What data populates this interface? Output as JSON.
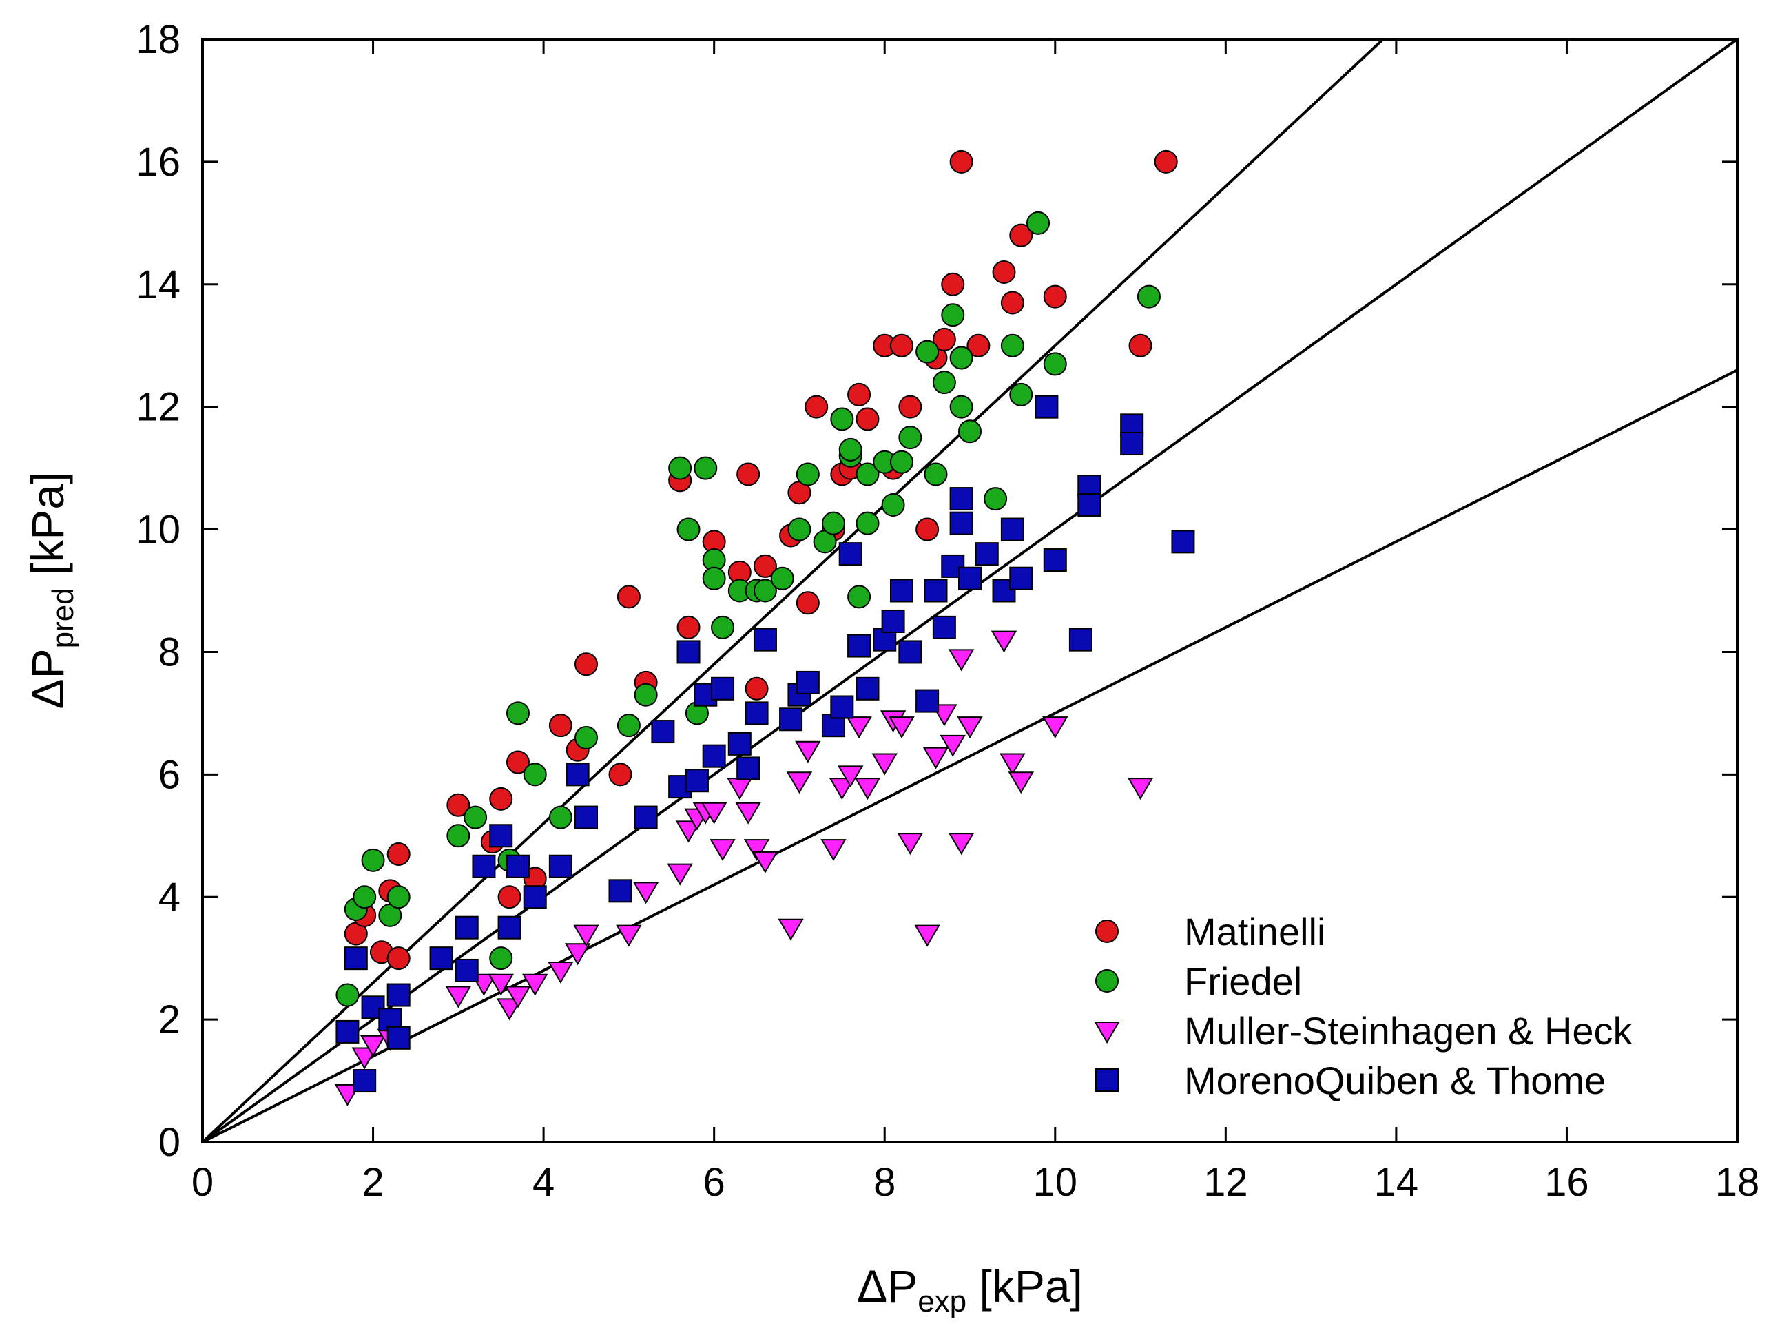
{
  "chart_data": {
    "type": "scatter",
    "title": "",
    "xlabel": {
      "main": "ΔP",
      "sub": "exp",
      "unit": " [kPa]"
    },
    "ylabel": {
      "main": "ΔP",
      "sub": "pred",
      "unit": " [kPa]"
    },
    "xlim": [
      0,
      18
    ],
    "ylim": [
      0,
      18
    ],
    "xticks": [
      "0",
      "2",
      "4",
      "6",
      "8",
      "10",
      "12",
      "14",
      "16",
      "18"
    ],
    "yticks": [
      "0",
      "2",
      "4",
      "6",
      "8",
      "10",
      "12",
      "14",
      "16",
      "18"
    ],
    "grid": false,
    "legend_position": "bottom-right",
    "reference_lines": [
      {
        "name": "+30% line",
        "slope": 1.3
      },
      {
        "name": "parity line",
        "slope": 1.0
      },
      {
        "name": "-30% line",
        "slope": 0.7
      }
    ],
    "series": [
      {
        "name": "Matinelli",
        "marker": "circle",
        "color": "#e0181d",
        "points": [
          [
            1.8,
            3.4
          ],
          [
            1.9,
            3.7
          ],
          [
            2.1,
            3.1
          ],
          [
            2.2,
            4.1
          ],
          [
            2.3,
            3.0
          ],
          [
            2.3,
            4.7
          ],
          [
            3.0,
            5.5
          ],
          [
            3.4,
            4.9
          ],
          [
            3.5,
            5.6
          ],
          [
            3.6,
            4.0
          ],
          [
            3.7,
            6.2
          ],
          [
            3.9,
            4.3
          ],
          [
            4.2,
            6.8
          ],
          [
            4.4,
            6.4
          ],
          [
            4.5,
            7.8
          ],
          [
            4.9,
            6.0
          ],
          [
            5.0,
            8.9
          ],
          [
            5.2,
            7.5
          ],
          [
            5.6,
            10.8
          ],
          [
            5.7,
            8.4
          ],
          [
            6.0,
            9.8
          ],
          [
            6.3,
            9.3
          ],
          [
            6.4,
            10.9
          ],
          [
            6.5,
            7.4
          ],
          [
            6.6,
            9.4
          ],
          [
            6.9,
            9.9
          ],
          [
            7.0,
            10.6
          ],
          [
            7.1,
            8.8
          ],
          [
            7.2,
            12.0
          ],
          [
            7.4,
            10.0
          ],
          [
            7.5,
            10.9
          ],
          [
            7.6,
            11.0
          ],
          [
            7.7,
            12.2
          ],
          [
            7.8,
            11.8
          ],
          [
            8.0,
            13.0
          ],
          [
            8.1,
            11.0
          ],
          [
            8.2,
            13.0
          ],
          [
            8.3,
            12.0
          ],
          [
            8.5,
            10.0
          ],
          [
            8.6,
            12.8
          ],
          [
            8.7,
            13.1
          ],
          [
            8.8,
            14.0
          ],
          [
            8.9,
            16.0
          ],
          [
            9.1,
            13.0
          ],
          [
            9.4,
            14.2
          ],
          [
            9.5,
            13.7
          ],
          [
            9.6,
            14.8
          ],
          [
            10.0,
            13.8
          ],
          [
            11.0,
            13.0
          ],
          [
            11.3,
            16.0
          ]
        ]
      },
      {
        "name": "Friedel",
        "marker": "circle",
        "color": "#1aa91a",
        "points": [
          [
            1.7,
            2.4
          ],
          [
            1.8,
            3.8
          ],
          [
            1.9,
            4.0
          ],
          [
            2.0,
            4.6
          ],
          [
            2.2,
            3.7
          ],
          [
            2.3,
            4.0
          ],
          [
            3.0,
            5.0
          ],
          [
            3.2,
            5.3
          ],
          [
            3.5,
            3.0
          ],
          [
            3.6,
            4.6
          ],
          [
            3.7,
            7.0
          ],
          [
            3.9,
            6.0
          ],
          [
            4.2,
            5.3
          ],
          [
            4.5,
            6.6
          ],
          [
            5.0,
            6.8
          ],
          [
            5.2,
            7.3
          ],
          [
            5.6,
            11.0
          ],
          [
            5.7,
            10.0
          ],
          [
            5.8,
            7.0
          ],
          [
            5.9,
            11.0
          ],
          [
            6.0,
            9.5
          ],
          [
            6.0,
            9.2
          ],
          [
            6.1,
            8.4
          ],
          [
            6.3,
            9.0
          ],
          [
            6.5,
            9.0
          ],
          [
            6.6,
            9.0
          ],
          [
            6.8,
            9.2
          ],
          [
            7.0,
            10.0
          ],
          [
            7.1,
            10.9
          ],
          [
            7.3,
            9.8
          ],
          [
            7.4,
            10.1
          ],
          [
            7.5,
            11.8
          ],
          [
            7.6,
            11.2
          ],
          [
            7.6,
            11.3
          ],
          [
            7.7,
            8.9
          ],
          [
            7.8,
            10.1
          ],
          [
            7.8,
            10.9
          ],
          [
            8.0,
            11.1
          ],
          [
            8.1,
            10.4
          ],
          [
            8.2,
            11.1
          ],
          [
            8.3,
            11.5
          ],
          [
            8.5,
            12.9
          ],
          [
            8.6,
            10.9
          ],
          [
            8.7,
            12.4
          ],
          [
            8.8,
            13.5
          ],
          [
            8.9,
            12.0
          ],
          [
            8.9,
            12.8
          ],
          [
            9.0,
            11.6
          ],
          [
            9.3,
            10.5
          ],
          [
            9.5,
            13.0
          ],
          [
            9.6,
            12.2
          ],
          [
            9.8,
            15.0
          ],
          [
            10.0,
            12.7
          ],
          [
            11.1,
            13.8
          ]
        ]
      },
      {
        "name": "Muller-Steinhagen & Heck",
        "marker": "triangle-down",
        "color": "#ff22ff",
        "points": [
          [
            1.7,
            0.8
          ],
          [
            1.9,
            1.4
          ],
          [
            2.0,
            1.6
          ],
          [
            2.2,
            1.7
          ],
          [
            3.0,
            2.4
          ],
          [
            3.3,
            2.6
          ],
          [
            3.5,
            2.6
          ],
          [
            3.6,
            2.2
          ],
          [
            3.7,
            2.4
          ],
          [
            3.9,
            2.6
          ],
          [
            4.2,
            2.8
          ],
          [
            4.4,
            3.1
          ],
          [
            4.5,
            3.4
          ],
          [
            5.0,
            3.4
          ],
          [
            5.2,
            4.1
          ],
          [
            5.6,
            4.4
          ],
          [
            5.7,
            5.1
          ],
          [
            5.8,
            5.3
          ],
          [
            5.9,
            5.4
          ],
          [
            6.0,
            5.4
          ],
          [
            6.1,
            4.8
          ],
          [
            6.3,
            5.8
          ],
          [
            6.4,
            5.4
          ],
          [
            6.5,
            4.8
          ],
          [
            6.6,
            4.6
          ],
          [
            6.9,
            3.5
          ],
          [
            7.0,
            5.9
          ],
          [
            7.1,
            6.4
          ],
          [
            7.4,
            4.8
          ],
          [
            7.5,
            5.8
          ],
          [
            7.6,
            6.0
          ],
          [
            7.7,
            6.8
          ],
          [
            7.8,
            5.8
          ],
          [
            8.0,
            6.2
          ],
          [
            8.1,
            6.9
          ],
          [
            8.2,
            6.8
          ],
          [
            8.3,
            4.9
          ],
          [
            8.5,
            3.4
          ],
          [
            8.6,
            6.3
          ],
          [
            8.7,
            7.0
          ],
          [
            8.8,
            6.5
          ],
          [
            8.9,
            7.9
          ],
          [
            8.9,
            4.9
          ],
          [
            9.0,
            6.8
          ],
          [
            9.4,
            8.2
          ],
          [
            9.5,
            6.2
          ],
          [
            9.6,
            5.9
          ],
          [
            10.0,
            6.8
          ],
          [
            11.0,
            5.8
          ]
        ]
      },
      {
        "name": "MorenoQuiben & Thome",
        "marker": "square",
        "color": "#0a0ab4",
        "points": [
          [
            1.7,
            1.8
          ],
          [
            1.8,
            3.0
          ],
          [
            1.9,
            1.0
          ],
          [
            2.0,
            2.2
          ],
          [
            2.2,
            2.0
          ],
          [
            2.3,
            2.4
          ],
          [
            2.3,
            1.7
          ],
          [
            2.8,
            3.0
          ],
          [
            3.1,
            3.5
          ],
          [
            3.1,
            2.8
          ],
          [
            3.3,
            4.5
          ],
          [
            3.5,
            5.0
          ],
          [
            3.6,
            3.5
          ],
          [
            3.7,
            4.5
          ],
          [
            3.9,
            4.0
          ],
          [
            4.2,
            4.5
          ],
          [
            4.4,
            6.0
          ],
          [
            4.5,
            5.3
          ],
          [
            4.9,
            4.1
          ],
          [
            5.2,
            5.3
          ],
          [
            5.4,
            6.7
          ],
          [
            5.6,
            5.8
          ],
          [
            5.7,
            8.0
          ],
          [
            5.8,
            5.9
          ],
          [
            5.9,
            7.3
          ],
          [
            6.0,
            6.3
          ],
          [
            6.1,
            7.4
          ],
          [
            6.3,
            6.5
          ],
          [
            6.4,
            6.1
          ],
          [
            6.5,
            7.0
          ],
          [
            6.6,
            8.2
          ],
          [
            6.9,
            6.9
          ],
          [
            7.0,
            7.3
          ],
          [
            7.1,
            7.5
          ],
          [
            7.4,
            6.8
          ],
          [
            7.5,
            7.1
          ],
          [
            7.6,
            9.6
          ],
          [
            7.7,
            8.1
          ],
          [
            7.8,
            7.4
          ],
          [
            8.0,
            8.2
          ],
          [
            8.1,
            8.5
          ],
          [
            8.2,
            9.0
          ],
          [
            8.3,
            8.0
          ],
          [
            8.5,
            7.2
          ],
          [
            8.6,
            9.0
          ],
          [
            8.7,
            8.4
          ],
          [
            8.8,
            9.4
          ],
          [
            8.9,
            10.5
          ],
          [
            8.9,
            10.1
          ],
          [
            9.0,
            9.2
          ],
          [
            9.2,
            9.6
          ],
          [
            9.4,
            9.0
          ],
          [
            9.5,
            10.0
          ],
          [
            9.6,
            9.2
          ],
          [
            9.9,
            12.0
          ],
          [
            10.0,
            9.5
          ],
          [
            10.3,
            8.2
          ],
          [
            10.4,
            10.7
          ],
          [
            10.4,
            10.4
          ],
          [
            10.9,
            11.7
          ],
          [
            10.9,
            11.4
          ],
          [
            11.5,
            9.8
          ]
        ]
      }
    ]
  }
}
